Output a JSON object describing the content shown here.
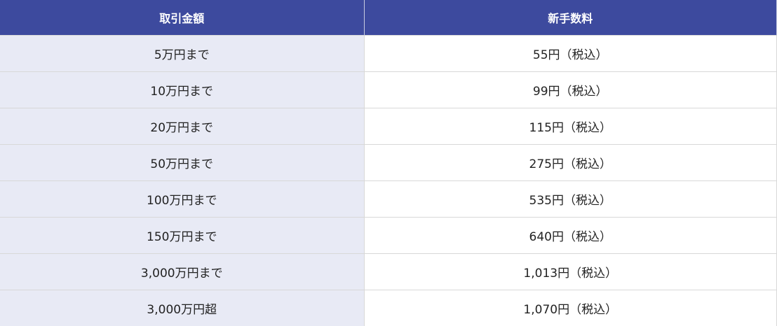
{
  "table": {
    "header": [
      "取引金額",
      "新手数料"
    ],
    "rows": [
      [
        "5万円まで",
        "55円（税込）"
      ],
      [
        "10万円まで",
        "99円（税込）"
      ],
      [
        "20万円まで",
        "115円（税込）"
      ],
      [
        "50万円まで",
        "275円（税込）"
      ],
      [
        "100万円まで",
        "535円（税込）"
      ],
      [
        "150万円まで",
        "640円（税込）"
      ],
      [
        "3,000万円まで",
        "1,013円（税込）"
      ],
      [
        "3,000万円超",
        "1,070円（税込）"
      ]
    ]
  }
}
